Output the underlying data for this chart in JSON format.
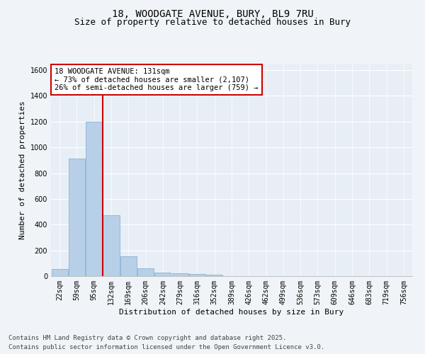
{
  "title_line1": "18, WOODGATE AVENUE, BURY, BL9 7RU",
  "title_line2": "Size of property relative to detached houses in Bury",
  "xlabel": "Distribution of detached houses by size in Bury",
  "ylabel": "Number of detached properties",
  "bar_color": "#b8cfe8",
  "bar_edge_color": "#7aaad0",
  "background_color": "#e8eef5",
  "grid_color": "#ffffff",
  "categories": [
    "22sqm",
    "59sqm",
    "95sqm",
    "132sqm",
    "169sqm",
    "206sqm",
    "242sqm",
    "279sqm",
    "316sqm",
    "352sqm",
    "389sqm",
    "426sqm",
    "462sqm",
    "499sqm",
    "536sqm",
    "573sqm",
    "609sqm",
    "646sqm",
    "683sqm",
    "719sqm",
    "756sqm"
  ],
  "values": [
    55,
    915,
    1200,
    475,
    155,
    60,
    28,
    20,
    14,
    13,
    0,
    0,
    0,
    0,
    0,
    0,
    0,
    0,
    0,
    0,
    0
  ],
  "ylim": [
    0,
    1650
  ],
  "yticks": [
    0,
    200,
    400,
    600,
    800,
    1000,
    1200,
    1400,
    1600
  ],
  "annotation_line1": "18 WOODGATE AVENUE: 131sqm",
  "annotation_line2": "← 73% of detached houses are smaller (2,107)",
  "annotation_line3": "26% of semi-detached houses are larger (759) →",
  "vline_x_index": 2.5,
  "vline_color": "#cc0000",
  "annotation_box_color": "#ffffff",
  "annotation_box_edge": "#cc0000",
  "footer_line1": "Contains HM Land Registry data © Crown copyright and database right 2025.",
  "footer_line2": "Contains public sector information licensed under the Open Government Licence v3.0.",
  "footer_fontsize": 6.5,
  "title_fontsize": 10,
  "subtitle_fontsize": 9,
  "axis_label_fontsize": 8,
  "tick_fontsize": 7,
  "annotation_fontsize": 7.5
}
